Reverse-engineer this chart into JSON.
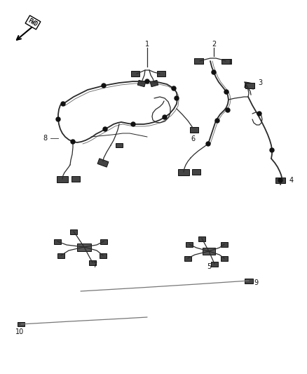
{
  "bg_color": "#ffffff",
  "line_color": "#2a2a2a",
  "label_color": "#111111",
  "fig_width": 4.38,
  "fig_height": 5.33,
  "dpi": 100,
  "lw_main": 1.3,
  "lw_thin": 0.9,
  "connector_fc": "#333333",
  "connector_ec": "#111111"
}
